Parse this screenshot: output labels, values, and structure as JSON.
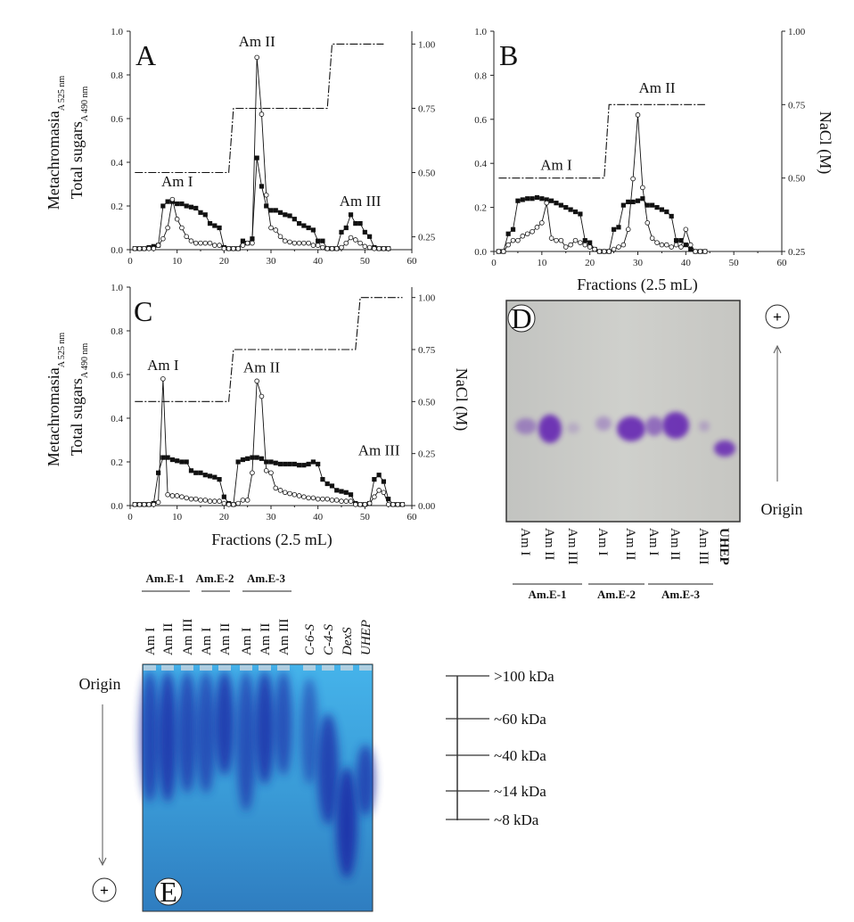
{
  "chart_data": [
    {
      "panel": "A",
      "type": "line",
      "ylabel_line1": "Metachromasia",
      "ylabel_line1_sub": "A 525 nm",
      "ylabel_line2": "Total sugars",
      "ylabel_line2_sub": "A 490 nm",
      "xlabel": "",
      "y2label": "",
      "xlim": [
        0,
        60
      ],
      "ylim": [
        0,
        1.0
      ],
      "y2lim": [
        0.2,
        1.05
      ],
      "xticks": [
        "0",
        "10",
        "20",
        "30",
        "40",
        "50",
        "60"
      ],
      "yticks": [
        "0.0",
        "0.2",
        "0.4",
        "0.6",
        "0.8",
        "1.0"
      ],
      "y2ticks": [
        "0.25",
        "0.50",
        "0.75",
        "1.00"
      ],
      "annotations": [
        "Am I",
        "Am II",
        "Am III"
      ],
      "series": [
        {
          "marker": "filled-square",
          "x": [
            1,
            2,
            3,
            4,
            5,
            6,
            7,
            8,
            9,
            10,
            11,
            12,
            13,
            14,
            15,
            16,
            17,
            18,
            19,
            20,
            21,
            22,
            23,
            24,
            25,
            26,
            27,
            28,
            29,
            30,
            31,
            32,
            33,
            34,
            35,
            36,
            37,
            38,
            39,
            40,
            41,
            42,
            43,
            44,
            45,
            46,
            47,
            48,
            49,
            50,
            51,
            52,
            53,
            54,
            55
          ],
          "y": [
            0.005,
            0.005,
            0.005,
            0.01,
            0.015,
            0.02,
            0.2,
            0.22,
            0.22,
            0.21,
            0.21,
            0.2,
            0.195,
            0.19,
            0.17,
            0.16,
            0.12,
            0.11,
            0.1,
            0.01,
            0.005,
            0.005,
            0.005,
            0.04,
            0.03,
            0.05,
            0.42,
            0.29,
            0.2,
            0.18,
            0.18,
            0.17,
            0.16,
            0.155,
            0.14,
            0.12,
            0.11,
            0.1,
            0.09,
            0.04,
            0.04,
            0.005,
            0.005,
            0.005,
            0.08,
            0.1,
            0.16,
            0.12,
            0.12,
            0.08,
            0.06,
            0.01,
            0.005,
            0.005,
            0.005
          ]
        },
        {
          "marker": "open-circle",
          "x": [
            1,
            2,
            3,
            4,
            5,
            6,
            7,
            8,
            9,
            10,
            11,
            12,
            13,
            14,
            15,
            16,
            17,
            18,
            19,
            20,
            21,
            22,
            23,
            24,
            25,
            26,
            27,
            28,
            29,
            30,
            31,
            32,
            33,
            34,
            35,
            36,
            37,
            38,
            39,
            40,
            41,
            42,
            43,
            44,
            45,
            46,
            47,
            48,
            49,
            50,
            51,
            52,
            53,
            54,
            55
          ],
          "y": [
            0.005,
            0.005,
            0.005,
            0.005,
            0.005,
            0.02,
            0.05,
            0.1,
            0.23,
            0.14,
            0.1,
            0.06,
            0.04,
            0.03,
            0.03,
            0.03,
            0.03,
            0.02,
            0.02,
            0.005,
            0.005,
            0.005,
            0.005,
            0.02,
            0.03,
            0.03,
            0.88,
            0.62,
            0.25,
            0.1,
            0.09,
            0.06,
            0.04,
            0.035,
            0.03,
            0.03,
            0.03,
            0.03,
            0.02,
            0.02,
            0.01,
            0.005,
            0.005,
            0.005,
            0.01,
            0.03,
            0.055,
            0.045,
            0.03,
            0.015,
            0.01,
            0.005,
            0.005,
            0.005,
            0.005
          ]
        },
        {
          "marker": "none",
          "line": "dash-dot",
          "axis": "right",
          "x": [
            1,
            21,
            22,
            42,
            43,
            54
          ],
          "y": [
            0.5,
            0.5,
            0.75,
            0.75,
            1.0,
            1.0
          ]
        }
      ]
    },
    {
      "panel": "B",
      "type": "line",
      "xlabel": "Fractions (2.5 mL)",
      "y2label": "NaCl (M)",
      "xlim": [
        0,
        60
      ],
      "ylim": [
        0,
        1.0
      ],
      "y2lim": [
        0.25,
        1.0
      ],
      "xticks": [
        "0",
        "10",
        "20",
        "30",
        "40",
        "50",
        "60"
      ],
      "yticks": [
        "0.0",
        "0.2",
        "0.4",
        "0.6",
        "0.8",
        "1.0"
      ],
      "y2ticks": [
        "0.25",
        "0.50",
        "0.75",
        "1.00"
      ],
      "annotations": [
        "Am I",
        "Am II"
      ],
      "series": [
        {
          "marker": "filled-square",
          "x": [
            1,
            2,
            3,
            4,
            5,
            6,
            7,
            8,
            9,
            10,
            11,
            12,
            13,
            14,
            15,
            16,
            17,
            18,
            19,
            20,
            21,
            22,
            23,
            24,
            25,
            26,
            27,
            28,
            29,
            30,
            31,
            32,
            33,
            34,
            35,
            36,
            37,
            38,
            39,
            40,
            41,
            42,
            43,
            44
          ],
          "y": [
            0,
            0,
            0.08,
            0.1,
            0.23,
            0.235,
            0.24,
            0.24,
            0.245,
            0.24,
            0.235,
            0.23,
            0.22,
            0.21,
            0.2,
            0.19,
            0.18,
            0.17,
            0.05,
            0.04,
            0.01,
            0,
            0,
            0,
            0.1,
            0.11,
            0.21,
            0.225,
            0.225,
            0.23,
            0.24,
            0.21,
            0.21,
            0.2,
            0.19,
            0.18,
            0.16,
            0.05,
            0.05,
            0.03,
            0.01,
            0,
            0,
            0
          ]
        },
        {
          "marker": "open-circle",
          "x": [
            1,
            2,
            3,
            4,
            5,
            6,
            7,
            8,
            9,
            10,
            11,
            12,
            13,
            14,
            15,
            16,
            17,
            18,
            19,
            20,
            21,
            22,
            23,
            24,
            25,
            26,
            27,
            28,
            29,
            30,
            31,
            32,
            33,
            34,
            35,
            36,
            37,
            38,
            39,
            40,
            41,
            42,
            43,
            44
          ],
          "y": [
            0,
            0,
            0.03,
            0.05,
            0.05,
            0.07,
            0.08,
            0.09,
            0.11,
            0.13,
            0.22,
            0.06,
            0.05,
            0.05,
            0.02,
            0.03,
            0.05,
            0.04,
            0.03,
            0.02,
            0.01,
            0,
            0,
            0,
            0.01,
            0.02,
            0.03,
            0.1,
            0.33,
            0.62,
            0.29,
            0.13,
            0.06,
            0.04,
            0.03,
            0.03,
            0.02,
            0.03,
            0.02,
            0.1,
            0.03,
            0,
            0,
            0
          ]
        },
        {
          "marker": "none",
          "line": "dash-dot",
          "axis": "right",
          "x": [
            1,
            23,
            24,
            44
          ],
          "y": [
            0.5,
            0.5,
            0.75,
            0.75
          ]
        }
      ]
    },
    {
      "panel": "C",
      "type": "line",
      "ylabel_line1": "Metachromasia",
      "ylabel_line1_sub": "A 525 nm",
      "ylabel_line2": "Total sugars",
      "ylabel_line2_sub": "A 490 nm",
      "xlabel": "Fractions (2.5 mL)",
      "y2label": "NaCl (M)",
      "xlim": [
        0,
        60
      ],
      "ylim": [
        0,
        1.0
      ],
      "y2lim": [
        0,
        1.05
      ],
      "xticks": [
        "0",
        "10",
        "20",
        "30",
        "40",
        "50",
        "60"
      ],
      "yticks": [
        "0.0",
        "0.2",
        "0.4",
        "0.6",
        "0.8",
        "1.0"
      ],
      "y2ticks": [
        "0.00",
        "0.25",
        "0.50",
        "0.75",
        "1.00"
      ],
      "annotations": [
        "Am I",
        "Am II",
        "Am III"
      ],
      "series": [
        {
          "marker": "filled-square",
          "x": [
            1,
            2,
            3,
            4,
            5,
            6,
            7,
            8,
            9,
            10,
            11,
            12,
            13,
            14,
            15,
            16,
            17,
            18,
            19,
            20,
            21,
            22,
            23,
            24,
            25,
            26,
            27,
            28,
            29,
            30,
            31,
            32,
            33,
            34,
            35,
            36,
            37,
            38,
            39,
            40,
            41,
            42,
            43,
            44,
            45,
            46,
            47,
            48,
            49,
            50,
            51,
            52,
            53,
            54,
            55,
            56,
            57,
            58
          ],
          "y": [
            0.005,
            0.005,
            0.005,
            0.005,
            0.01,
            0.15,
            0.22,
            0.22,
            0.21,
            0.205,
            0.2,
            0.2,
            0.16,
            0.15,
            0.15,
            0.14,
            0.135,
            0.13,
            0.12,
            0.04,
            0.01,
            0.005,
            0.2,
            0.21,
            0.215,
            0.22,
            0.22,
            0.215,
            0.2,
            0.2,
            0.195,
            0.19,
            0.19,
            0.19,
            0.19,
            0.185,
            0.185,
            0.19,
            0.2,
            0.19,
            0.12,
            0.1,
            0.09,
            0.07,
            0.065,
            0.06,
            0.05,
            0.01,
            0.005,
            0.005,
            0.01,
            0.12,
            0.14,
            0.11,
            0.03,
            0.005,
            0.005,
            0.005
          ]
        },
        {
          "marker": "open-circle",
          "x": [
            1,
            2,
            3,
            4,
            5,
            6,
            7,
            8,
            9,
            10,
            11,
            12,
            13,
            14,
            15,
            16,
            17,
            18,
            19,
            20,
            21,
            22,
            23,
            24,
            25,
            26,
            27,
            28,
            29,
            30,
            31,
            32,
            33,
            34,
            35,
            36,
            37,
            38,
            39,
            40,
            41,
            42,
            43,
            44,
            45,
            46,
            47,
            48,
            49,
            50,
            51,
            52,
            53,
            54,
            55,
            56,
            57,
            58
          ],
          "y": [
            0.005,
            0.005,
            0.005,
            0.005,
            0.005,
            0.015,
            0.58,
            0.05,
            0.045,
            0.045,
            0.04,
            0.035,
            0.03,
            0.03,
            0.025,
            0.025,
            0.02,
            0.02,
            0.02,
            0.01,
            0.005,
            0.005,
            0.01,
            0.025,
            0.025,
            0.15,
            0.57,
            0.5,
            0.16,
            0.15,
            0.08,
            0.07,
            0.06,
            0.055,
            0.05,
            0.045,
            0.04,
            0.035,
            0.035,
            0.03,
            0.03,
            0.03,
            0.025,
            0.025,
            0.02,
            0.02,
            0.02,
            0.005,
            0.005,
            0.005,
            0.01,
            0.04,
            0.07,
            0.06,
            0.005,
            0.005,
            0.005,
            0.005
          ]
        },
        {
          "marker": "none",
          "line": "dash-dot",
          "axis": "right",
          "x": [
            1,
            21,
            22,
            48,
            49,
            58
          ],
          "y": [
            0.5,
            0.5,
            0.75,
            0.75,
            1.0,
            1.0
          ]
        }
      ]
    }
  ],
  "gel_d": {
    "panel_label": "D",
    "lanes": [
      "Am I",
      "Am II",
      "Am III",
      "Am I",
      "Am II",
      "Am I",
      "Am II",
      "Am III",
      "UHEP"
    ],
    "groups": [
      "Am.E-1",
      "Am.E-2",
      "Am.E-3"
    ],
    "anode_symbol": "+",
    "origin_label": "Origin",
    "band_color": "#6a2db4",
    "background_color": "#c8c8c4"
  },
  "gel_e": {
    "panel_label": "E",
    "groups": [
      "Am.E-1",
      "Am.E-2",
      "Am.E-3"
    ],
    "lanes": [
      "Am I",
      "Am II",
      "Am III",
      "Am I",
      "Am II",
      "Am I",
      "Am II",
      "Am III",
      "C-6-S",
      "C-4-S",
      "DexS",
      "UHEP"
    ],
    "origin_label": "Origin",
    "anode_symbol": "+",
    "mw_markers": [
      ">100 kDa",
      "~60 kDa",
      "~40 kDa",
      "~14 kDa",
      "~8 kDa"
    ],
    "band_color": "#1d2fa8",
    "background_color": "#3a9fdc"
  }
}
